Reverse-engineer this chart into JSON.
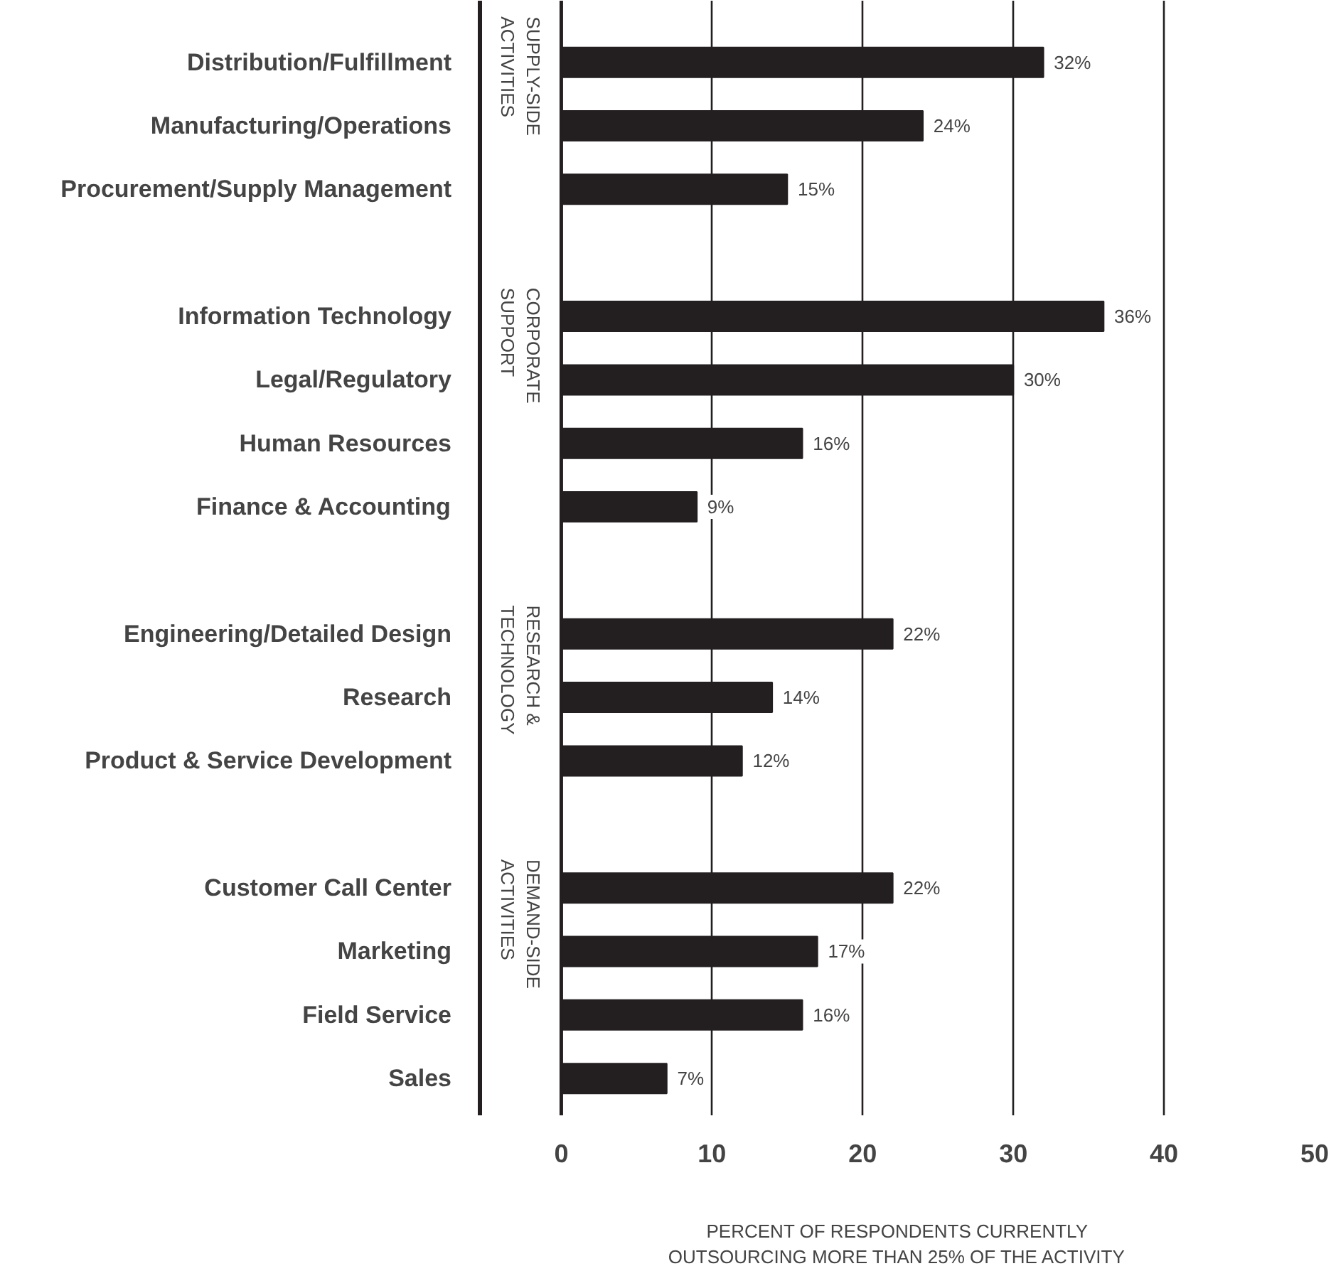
{
  "chart_data": {
    "type": "bar",
    "orientation": "horizontal",
    "categories": [
      "Distribution/Fulfillment",
      "Manufacturing/Operations",
      "Procurement/Supply Management",
      null,
      "Information Technology",
      "Legal/Regulatory",
      "Human Resources",
      "Finance & Accounting",
      null,
      "Engineering/Detailed Design",
      "Research",
      "Product & Service Development",
      null,
      "Customer Call Center",
      "Marketing",
      "Field Service",
      "Sales"
    ],
    "values": [
      32,
      24,
      15,
      null,
      36,
      30,
      16,
      9,
      null,
      22,
      14,
      12,
      null,
      22,
      17,
      16,
      7
    ],
    "value_labels": [
      "32%",
      "24%",
      "15%",
      null,
      "36%",
      "30%",
      "16%",
      "9%",
      null,
      "22%",
      "14%",
      "12%",
      null,
      "22%",
      "17%",
      "16%",
      "7%"
    ],
    "color": "#231f20",
    "xlabel": "PERCENT OF RESPONDENTS CURRENTLY OUTSOURCING MORE THAN 25% OF THE ACTIVITY",
    "annotations": [
      "SUPPLY-SIDE ACTIVITIES",
      "CORPORATE SUPPORT",
      "RESEARCH & TECHNOLOGY",
      "DEMAND-SIDE ACTIVITIES"
    ],
    "xlim": [
      -5.4,
      50
    ],
    "xticks": [
      0,
      10,
      20,
      30,
      40,
      50
    ],
    "grid": "x"
  }
}
